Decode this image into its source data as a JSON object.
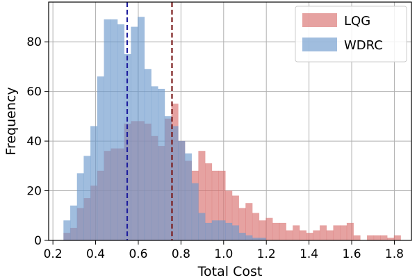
{
  "chart_data": {
    "type": "bar",
    "subtype": "overlapping-histogram",
    "title": "",
    "xlabel": "Total Cost",
    "ylabel": "Frequency",
    "xlim": [
      0.18,
      1.88
    ],
    "ylim": [
      0,
      96
    ],
    "xticks": [
      0.2,
      0.4,
      0.6,
      0.8,
      1.0,
      1.2,
      1.4,
      1.6,
      1.8
    ],
    "xtick_labels": [
      "0.2",
      "0.4",
      "0.6",
      "0.8",
      "1.0",
      "1.2",
      "1.4",
      "1.6",
      "1.8"
    ],
    "yticks": [
      0,
      20,
      40,
      60,
      80
    ],
    "ytick_labels": [
      "0",
      "20",
      "40",
      "60",
      "80"
    ],
    "grid": true,
    "legend_position": "top-right",
    "series": [
      {
        "name": "LQG",
        "color": "#d9706f",
        "bin_start": 0.25,
        "bin_width": 0.0316,
        "values": [
          3,
          5,
          13,
          17,
          22,
          28,
          36,
          37,
          37,
          47,
          48,
          48,
          47,
          42,
          38,
          49,
          55,
          40,
          32,
          28,
          36,
          31,
          28,
          28,
          20,
          18,
          13,
          15,
          11,
          8,
          9,
          7,
          7,
          4,
          6,
          4,
          3,
          4,
          6,
          4,
          6,
          6,
          7,
          2,
          0,
          2,
          2,
          2,
          1,
          2
        ]
      },
      {
        "name": "WDRC",
        "color": "#6d9acd",
        "bin_start": 0.25,
        "bin_width": 0.0316,
        "values": [
          8,
          14,
          27,
          34,
          46,
          66,
          89,
          89,
          87,
          75,
          86,
          90,
          69,
          62,
          61,
          50,
          46,
          40,
          35,
          23,
          11,
          7,
          8,
          8,
          7,
          6,
          3,
          2,
          1,
          1
        ]
      }
    ],
    "vlines": [
      {
        "x": 0.548,
        "color": "#1f1f9e",
        "style": "dashed"
      },
      {
        "x": 0.758,
        "color": "#7a1a1a",
        "style": "dashed"
      }
    ]
  }
}
